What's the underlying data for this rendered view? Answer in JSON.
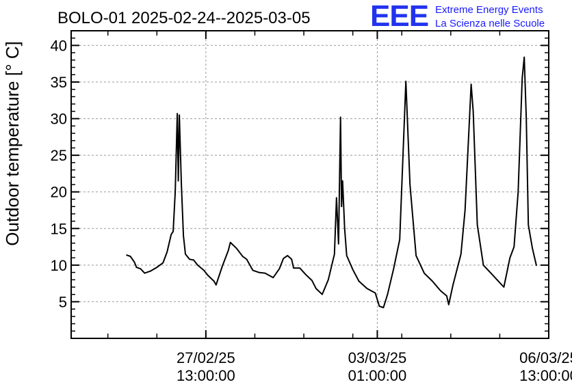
{
  "chart_data": {
    "type": "line",
    "title": "BOLO-01 2025-02-24--2025-03-05",
    "xlabel": "",
    "ylabel": "Outdoor temperature [° C]",
    "ylim": [
      0,
      42
    ],
    "yticks": [
      5,
      10,
      15,
      20,
      25,
      30,
      35,
      40
    ],
    "xlim": [
      "2025-02-24 19:00",
      "2025-03-06 13:00"
    ],
    "xticks": [
      {
        "x": "2025-02-27 13:00",
        "date": "27/02/25",
        "time": "13:00:00"
      },
      {
        "x": "2025-03-03 01:00",
        "date": "03/03/25",
        "time": "01:00:00"
      },
      {
        "x": "2025-03-06 13:00",
        "date": "06/03/25",
        "time": "13:00:00"
      }
    ],
    "grid": true,
    "series": [
      {
        "values": [
          [
            "2025-02-25 22:00",
            11.4
          ],
          [
            "2025-02-26 00:00",
            11.2
          ],
          [
            "2025-02-26 02:00",
            10.4
          ],
          [
            "2025-02-26 03:00",
            9.7
          ],
          [
            "2025-02-26 05:00",
            9.5
          ],
          [
            "2025-02-26 07:00",
            8.9
          ],
          [
            "2025-02-26 10:00",
            9.2
          ],
          [
            "2025-02-26 13:00",
            9.7
          ],
          [
            "2025-02-26 16:00",
            10.3
          ],
          [
            "2025-02-26 18:00",
            11.8
          ],
          [
            "2025-02-26 20:00",
            14.2
          ],
          [
            "2025-02-26 21:00",
            14.6
          ],
          [
            "2025-02-26 22:00",
            20.0
          ],
          [
            "2025-02-26 23:00",
            30.7
          ],
          [
            "2025-02-26 23:30",
            21.5
          ],
          [
            "2025-02-27 00:00",
            30.5
          ],
          [
            "2025-02-27 01:00",
            21.0
          ],
          [
            "2025-02-27 02:00",
            14.0
          ],
          [
            "2025-02-27 03:00",
            11.5
          ],
          [
            "2025-02-27 05:00",
            10.8
          ],
          [
            "2025-02-27 07:00",
            10.7
          ],
          [
            "2025-02-27 09:00",
            10.0
          ],
          [
            "2025-02-27 12:00",
            9.3
          ],
          [
            "2025-02-27 14:00",
            8.6
          ],
          [
            "2025-02-27 17:00",
            7.8
          ],
          [
            "2025-02-27 18:00",
            7.3
          ],
          [
            "2025-02-27 21:00",
            9.8
          ],
          [
            "2025-02-28 00:00",
            12.0
          ],
          [
            "2025-02-28 01:00",
            13.1
          ],
          [
            "2025-02-28 04:00",
            12.3
          ],
          [
            "2025-02-28 07:00",
            11.2
          ],
          [
            "2025-02-28 09:00",
            10.8
          ],
          [
            "2025-02-28 12:00",
            9.3
          ],
          [
            "2025-02-28 15:00",
            9.0
          ],
          [
            "2025-02-28 18:00",
            8.9
          ],
          [
            "2025-02-28 22:00",
            8.3
          ],
          [
            "2025-03-01 01:00",
            9.5
          ],
          [
            "2025-03-01 03:00",
            10.9
          ],
          [
            "2025-03-01 05:00",
            11.3
          ],
          [
            "2025-03-01 07:00",
            10.8
          ],
          [
            "2025-03-01 08:00",
            9.6
          ],
          [
            "2025-03-01 11:00",
            9.6
          ],
          [
            "2025-03-01 14:00",
            8.7
          ],
          [
            "2025-03-01 17:00",
            7.9
          ],
          [
            "2025-03-01 19:00",
            6.8
          ],
          [
            "2025-03-01 22:00",
            6.0
          ],
          [
            "2025-03-02 01:00",
            8.0
          ],
          [
            "2025-03-02 04:00",
            11.5
          ],
          [
            "2025-03-02 05:00",
            19.2
          ],
          [
            "2025-03-02 06:00",
            12.9
          ],
          [
            "2025-03-02 07:00",
            30.2
          ],
          [
            "2025-03-02 07:30",
            18.0
          ],
          [
            "2025-03-02 08:00",
            21.5
          ],
          [
            "2025-03-02 09:00",
            15.0
          ],
          [
            "2025-03-02 10:00",
            11.3
          ],
          [
            "2025-03-02 13:00",
            9.4
          ],
          [
            "2025-03-02 16:00",
            7.8
          ],
          [
            "2025-03-02 20:00",
            6.8
          ],
          [
            "2025-03-03 00:00",
            6.2
          ],
          [
            "2025-03-03 02:00",
            4.4
          ],
          [
            "2025-03-03 04:00",
            4.2
          ],
          [
            "2025-03-03 06:00",
            6.0
          ],
          [
            "2025-03-03 09:00",
            9.5
          ],
          [
            "2025-03-03 12:00",
            13.5
          ],
          [
            "2025-03-03 15:00",
            35.1
          ],
          [
            "2025-03-03 17:00",
            21.0
          ],
          [
            "2025-03-03 20:00",
            11.3
          ],
          [
            "2025-03-04 00:00",
            8.9
          ],
          [
            "2025-03-04 04:00",
            7.8
          ],
          [
            "2025-03-04 08:00",
            6.5
          ],
          [
            "2025-03-04 11:00",
            5.8
          ],
          [
            "2025-03-04 12:00",
            4.6
          ],
          [
            "2025-03-04 14:00",
            7.2
          ],
          [
            "2025-03-04 18:00",
            11.5
          ],
          [
            "2025-03-04 20:00",
            17.5
          ],
          [
            "2025-03-04 23:00",
            34.7
          ],
          [
            "2025-03-05 00:00",
            31.0
          ],
          [
            "2025-03-05 02:00",
            15.5
          ],
          [
            "2025-03-05 05:00",
            10.0
          ],
          [
            "2025-03-05 09:00",
            8.8
          ],
          [
            "2025-03-05 13:00",
            7.6
          ],
          [
            "2025-03-05 15:00",
            7.0
          ],
          [
            "2025-03-05 18:00",
            11.0
          ],
          [
            "2025-03-05 20:00",
            12.5
          ],
          [
            "2025-03-05 22:00",
            20.0
          ],
          [
            "2025-03-06 00:00",
            35.5
          ],
          [
            "2025-03-06 01:00",
            38.4
          ],
          [
            "2025-03-06 02:00",
            30.0
          ],
          [
            "2025-03-06 03:00",
            15.5
          ],
          [
            "2025-03-06 05:00",
            12.3
          ],
          [
            "2025-03-06 07:00",
            9.9
          ]
        ]
      }
    ]
  },
  "logo": {
    "mark": "EEE",
    "line1": "Extreme Energy Events",
    "line2": "La Scienza nelle Scuole",
    "color": "#2233ee"
  },
  "colors": {
    "line": "#000000",
    "grid": "#999999",
    "axis": "#000000"
  }
}
